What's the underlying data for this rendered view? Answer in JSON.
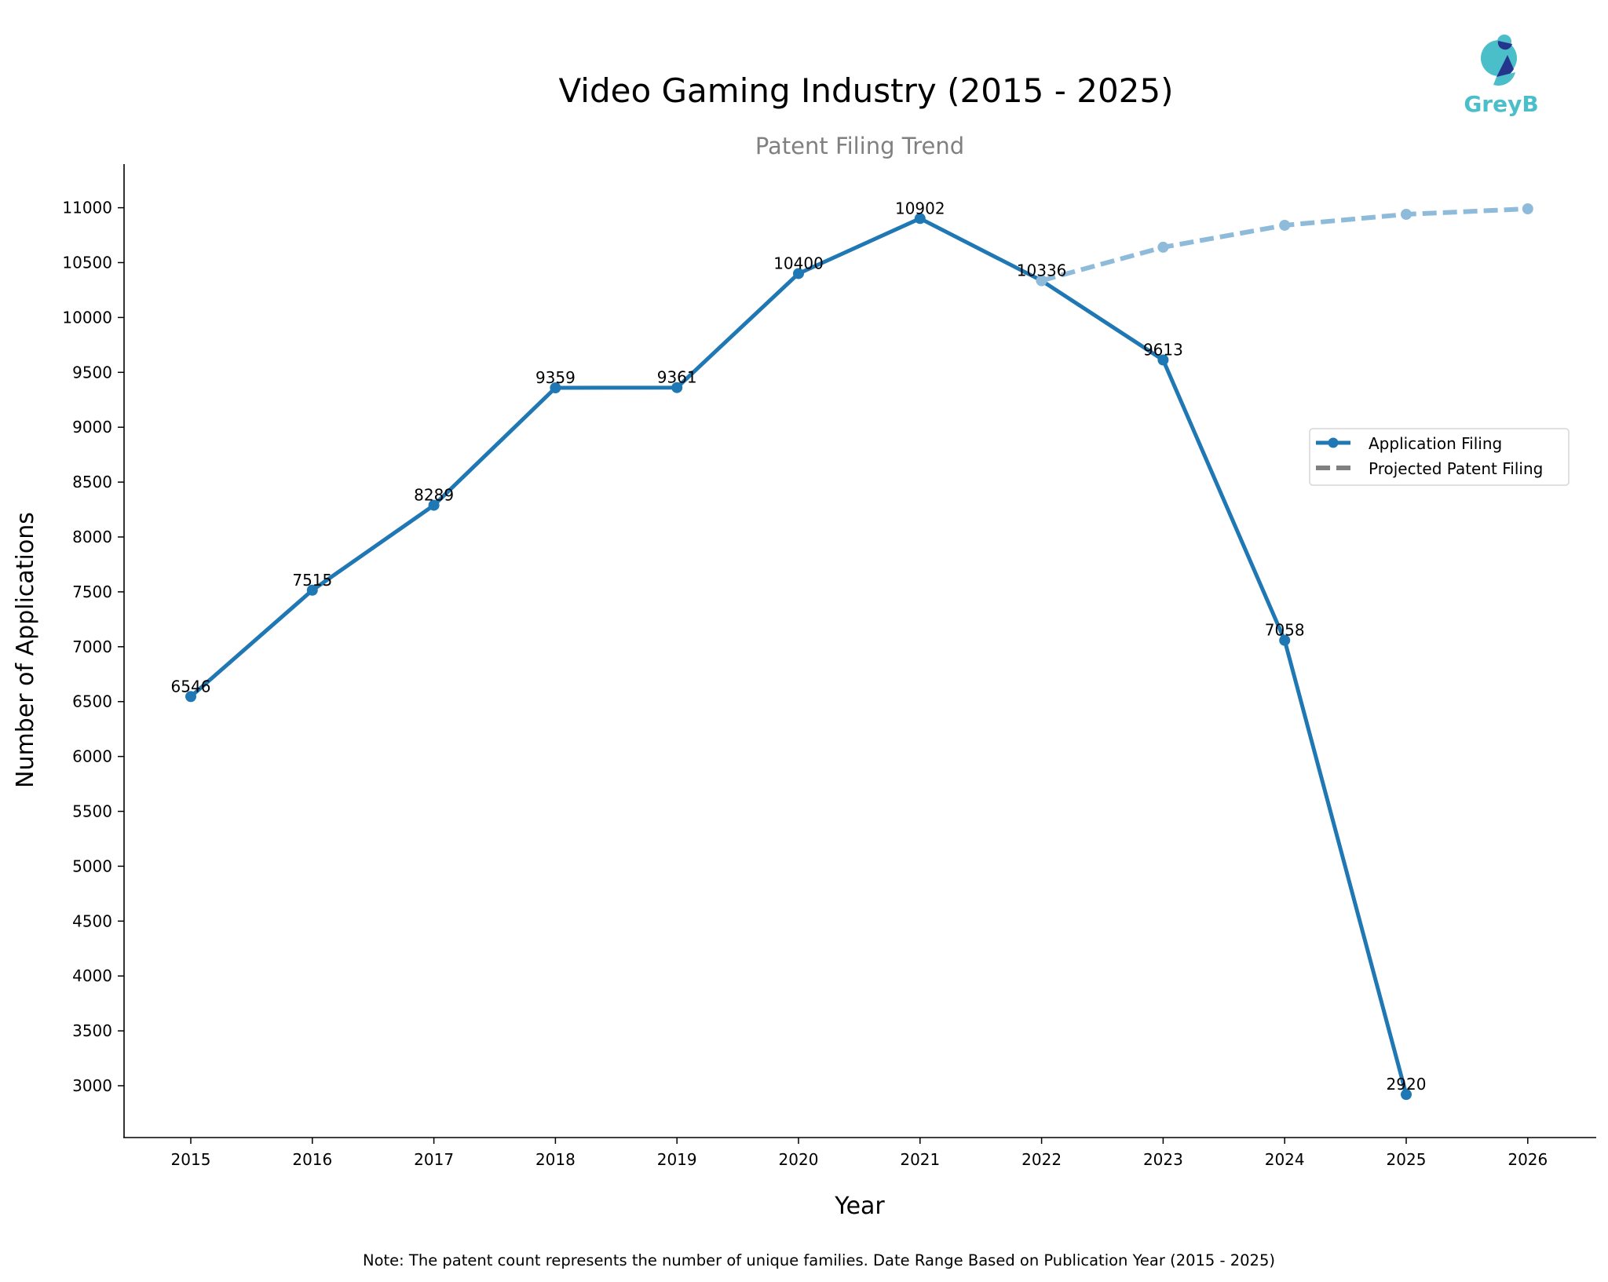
{
  "chart_data": {
    "type": "line",
    "title": "Video Gaming Industry (2015 - 2025)",
    "subtitle": "Patent Filing Trend",
    "xlabel": "Year",
    "ylabel": "Number of Applications",
    "note": "Note: The patent count represents the number of unique families. Date Range Based on Publication Year (2015 - 2025)",
    "xlim": [
      2014.45,
      2026.55
    ],
    "ylim": [
      2520,
      11400
    ],
    "x_ticks": [
      "2015",
      "2016",
      "2017",
      "2018",
      "2019",
      "2020",
      "2021",
      "2022",
      "2023",
      "2024",
      "2025",
      "2026"
    ],
    "y_ticks": [
      "3000",
      "3500",
      "4000",
      "4500",
      "5000",
      "5500",
      "6000",
      "6500",
      "7000",
      "7500",
      "8000",
      "8500",
      "9000",
      "9500",
      "10000",
      "10500",
      "11000"
    ],
    "grid": false,
    "legend_position": "right",
    "series": [
      {
        "name": "Application Filing",
        "color": "#1f77b4",
        "style": "solid",
        "x": [
          2015,
          2016,
          2017,
          2018,
          2019,
          2020,
          2021,
          2022,
          2023,
          2024,
          2025
        ],
        "values": [
          6546,
          7515,
          8289,
          9359,
          9361,
          10400,
          10902,
          10336,
          9613,
          7058,
          2920
        ],
        "labels": [
          "6546",
          "7515",
          "8289",
          "9359",
          "9361",
          "10400",
          "10902",
          "10336",
          "9613",
          "7058",
          "2920"
        ]
      },
      {
        "name": "Projected Patent Filing",
        "color": "#8fbbdb",
        "style": "dashed",
        "x": [
          2022,
          2023,
          2024,
          2025,
          2026
        ],
        "values": [
          10336,
          10640,
          10840,
          10940,
          10990
        ]
      }
    ]
  },
  "logo": {
    "text": "GreyB",
    "color": "#4bbfc9",
    "accent": "#26358c"
  },
  "legend_sample_color": "#808080"
}
